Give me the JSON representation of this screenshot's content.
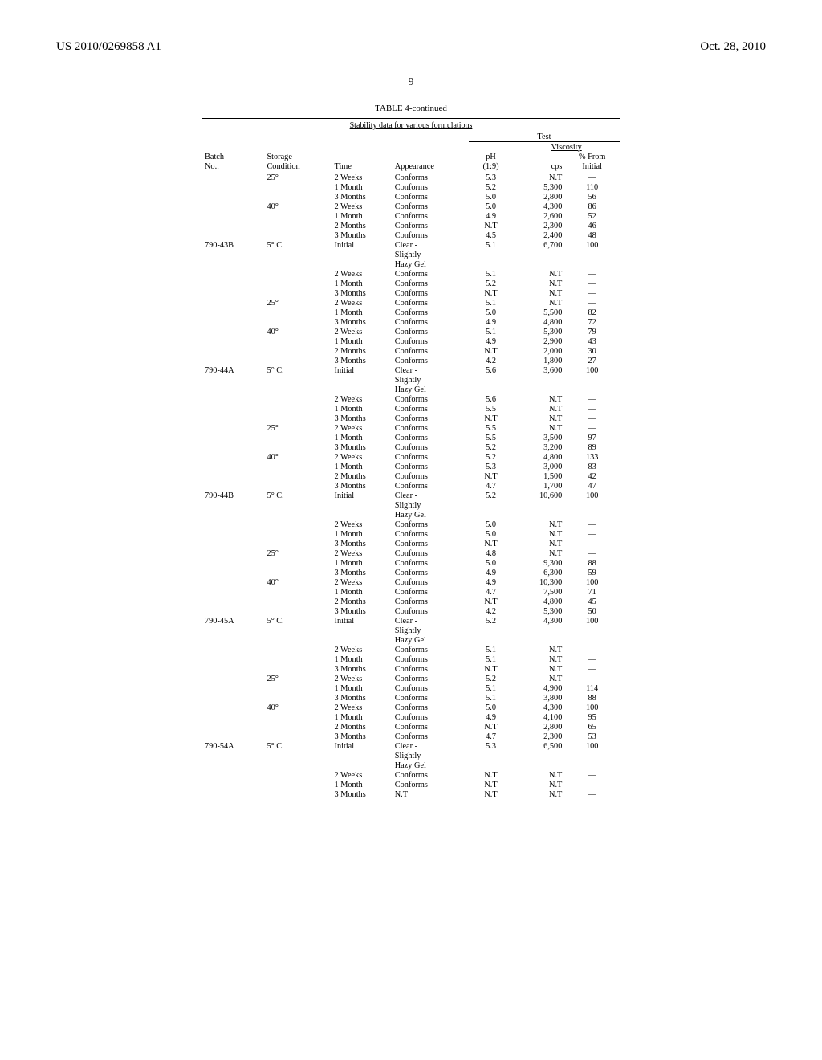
{
  "header": {
    "left": "US 2010/0269858 A1",
    "right": "Oct. 28, 2010"
  },
  "page_number": "9",
  "table": {
    "title": "TABLE 4-continued",
    "subtitle": "Stability data for various formulations",
    "test_label": "Test",
    "viscosity_label": "Viscosity",
    "columns": {
      "batch_l1": "Batch",
      "batch_l2": "No.:",
      "storage_l1": "Storage",
      "storage_l2": "Condition",
      "time": "Time",
      "appearance": "Appearance",
      "ph_l1": "pH",
      "ph_l2": "(1:9)",
      "cps": "cps",
      "pct_l1": "% From",
      "pct_l2": "Initial"
    },
    "rows": [
      {
        "batch": "",
        "storage": "25°",
        "time": "2 Weeks",
        "appear": "Conforms",
        "ph": "5.3",
        "cps": "N.T",
        "pct": "—"
      },
      {
        "batch": "",
        "storage": "",
        "time": "1 Month",
        "appear": "Conforms",
        "ph": "5.2",
        "cps": "5,300",
        "pct": "110"
      },
      {
        "batch": "",
        "storage": "",
        "time": "3 Months",
        "appear": "Conforms",
        "ph": "5.0",
        "cps": "2,800",
        "pct": "56"
      },
      {
        "batch": "",
        "storage": "40°",
        "time": "2 Weeks",
        "appear": "Conforms",
        "ph": "5.0",
        "cps": "4,300",
        "pct": "86"
      },
      {
        "batch": "",
        "storage": "",
        "time": "1 Month",
        "appear": "Conforms",
        "ph": "4.9",
        "cps": "2,600",
        "pct": "52"
      },
      {
        "batch": "",
        "storage": "",
        "time": "2 Months",
        "appear": "Conforms",
        "ph": "N.T",
        "cps": "2,300",
        "pct": "46"
      },
      {
        "batch": "",
        "storage": "",
        "time": "3 Months",
        "appear": "Conforms",
        "ph": "4.5",
        "cps": "2,400",
        "pct": "48"
      },
      {
        "batch": "790-43B",
        "storage": "5° C.",
        "time": "Initial",
        "appear": "Clear -",
        "ph": "5.1",
        "cps": "6,700",
        "pct": "100"
      },
      {
        "batch": "",
        "storage": "",
        "time": "",
        "appear": "Slightly",
        "ph": "",
        "cps": "",
        "pct": ""
      },
      {
        "batch": "",
        "storage": "",
        "time": "",
        "appear": "Hazy Gel",
        "ph": "",
        "cps": "",
        "pct": ""
      },
      {
        "batch": "",
        "storage": "",
        "time": "2 Weeks",
        "appear": "Conforms",
        "ph": "5.1",
        "cps": "N.T",
        "pct": "—"
      },
      {
        "batch": "",
        "storage": "",
        "time": "1 Month",
        "appear": "Conforms",
        "ph": "5.2",
        "cps": "N.T",
        "pct": "—"
      },
      {
        "batch": "",
        "storage": "",
        "time": "3 Months",
        "appear": "Conforms",
        "ph": "N.T",
        "cps": "N.T",
        "pct": "—"
      },
      {
        "batch": "",
        "storage": "25°",
        "time": "2 Weeks",
        "appear": "Conforms",
        "ph": "5.1",
        "cps": "N.T",
        "pct": "—"
      },
      {
        "batch": "",
        "storage": "",
        "time": "1 Month",
        "appear": "Conforms",
        "ph": "5.0",
        "cps": "5,500",
        "pct": "82"
      },
      {
        "batch": "",
        "storage": "",
        "time": "3 Months",
        "appear": "Conforms",
        "ph": "4.9",
        "cps": "4,800",
        "pct": "72"
      },
      {
        "batch": "",
        "storage": "40°",
        "time": "2 Weeks",
        "appear": "Conforms",
        "ph": "5.1",
        "cps": "5,300",
        "pct": "79"
      },
      {
        "batch": "",
        "storage": "",
        "time": "1 Month",
        "appear": "Conforms",
        "ph": "4.9",
        "cps": "2,900",
        "pct": "43"
      },
      {
        "batch": "",
        "storage": "",
        "time": "2 Months",
        "appear": "Conforms",
        "ph": "N.T",
        "cps": "2,000",
        "pct": "30"
      },
      {
        "batch": "",
        "storage": "",
        "time": "3 Months",
        "appear": "Conforms",
        "ph": "4.2",
        "cps": "1,800",
        "pct": "27"
      },
      {
        "batch": "790-44A",
        "storage": "5° C.",
        "time": "Initial",
        "appear": "Clear -",
        "ph": "5.6",
        "cps": "3,600",
        "pct": "100"
      },
      {
        "batch": "",
        "storage": "",
        "time": "",
        "appear": "Slightly",
        "ph": "",
        "cps": "",
        "pct": ""
      },
      {
        "batch": "",
        "storage": "",
        "time": "",
        "appear": "Hazy Gel",
        "ph": "",
        "cps": "",
        "pct": ""
      },
      {
        "batch": "",
        "storage": "",
        "time": "2 Weeks",
        "appear": "Conforms",
        "ph": "5.6",
        "cps": "N.T",
        "pct": "—"
      },
      {
        "batch": "",
        "storage": "",
        "time": "1 Month",
        "appear": "Conforms",
        "ph": "5.5",
        "cps": "N.T",
        "pct": "—"
      },
      {
        "batch": "",
        "storage": "",
        "time": "3 Months",
        "appear": "Conforms",
        "ph": "N.T",
        "cps": "N.T",
        "pct": "—"
      },
      {
        "batch": "",
        "storage": "25°",
        "time": "2 Weeks",
        "appear": "Conforms",
        "ph": "5.5",
        "cps": "N.T",
        "pct": "—"
      },
      {
        "batch": "",
        "storage": "",
        "time": "1 Month",
        "appear": "Conforms",
        "ph": "5.5",
        "cps": "3,500",
        "pct": "97"
      },
      {
        "batch": "",
        "storage": "",
        "time": "3 Months",
        "appear": "Conforms",
        "ph": "5.2",
        "cps": "3,200",
        "pct": "89"
      },
      {
        "batch": "",
        "storage": "40°",
        "time": "2 Weeks",
        "appear": "Conforms",
        "ph": "5.2",
        "cps": "4,800",
        "pct": "133"
      },
      {
        "batch": "",
        "storage": "",
        "time": "1 Month",
        "appear": "Conforms",
        "ph": "5.3",
        "cps": "3,000",
        "pct": "83"
      },
      {
        "batch": "",
        "storage": "",
        "time": "2 Months",
        "appear": "Conforms",
        "ph": "N.T",
        "cps": "1,500",
        "pct": "42"
      },
      {
        "batch": "",
        "storage": "",
        "time": "3 Months",
        "appear": "Conforms",
        "ph": "4.7",
        "cps": "1,700",
        "pct": "47"
      },
      {
        "batch": "790-44B",
        "storage": "5° C.",
        "time": "Initial",
        "appear": "Clear -",
        "ph": "5.2",
        "cps": "10,600",
        "pct": "100"
      },
      {
        "batch": "",
        "storage": "",
        "time": "",
        "appear": "Slightly",
        "ph": "",
        "cps": "",
        "pct": ""
      },
      {
        "batch": "",
        "storage": "",
        "time": "",
        "appear": "Hazy Gel",
        "ph": "",
        "cps": "",
        "pct": ""
      },
      {
        "batch": "",
        "storage": "",
        "time": "2 Weeks",
        "appear": "Conforms",
        "ph": "5.0",
        "cps": "N.T",
        "pct": "—"
      },
      {
        "batch": "",
        "storage": "",
        "time": "1 Month",
        "appear": "Conforms",
        "ph": "5.0",
        "cps": "N.T",
        "pct": "—"
      },
      {
        "batch": "",
        "storage": "",
        "time": "3 Months",
        "appear": "Conforms",
        "ph": "N.T",
        "cps": "N.T",
        "pct": "—"
      },
      {
        "batch": "",
        "storage": "25°",
        "time": "2 Weeks",
        "appear": "Conforms",
        "ph": "4.8",
        "cps": "N.T",
        "pct": "—"
      },
      {
        "batch": "",
        "storage": "",
        "time": "1 Month",
        "appear": "Conforms",
        "ph": "5.0",
        "cps": "9,300",
        "pct": "88"
      },
      {
        "batch": "",
        "storage": "",
        "time": "3 Months",
        "appear": "Conforms",
        "ph": "4.9",
        "cps": "6,300",
        "pct": "59"
      },
      {
        "batch": "",
        "storage": "40°",
        "time": "2 Weeks",
        "appear": "Conforms",
        "ph": "4.9",
        "cps": "10,300",
        "pct": "100"
      },
      {
        "batch": "",
        "storage": "",
        "time": "1 Month",
        "appear": "Conforms",
        "ph": "4.7",
        "cps": "7,500",
        "pct": "71"
      },
      {
        "batch": "",
        "storage": "",
        "time": "2 Months",
        "appear": "Conforms",
        "ph": "N.T",
        "cps": "4,800",
        "pct": "45"
      },
      {
        "batch": "",
        "storage": "",
        "time": "3 Months",
        "appear": "Conforms",
        "ph": "4.2",
        "cps": "5,300",
        "pct": "50"
      },
      {
        "batch": "790-45A",
        "storage": "5° C.",
        "time": "Initial",
        "appear": "Clear -",
        "ph": "5.2",
        "cps": "4,300",
        "pct": "100"
      },
      {
        "batch": "",
        "storage": "",
        "time": "",
        "appear": "Slightly",
        "ph": "",
        "cps": "",
        "pct": ""
      },
      {
        "batch": "",
        "storage": "",
        "time": "",
        "appear": "Hazy Gel",
        "ph": "",
        "cps": "",
        "pct": ""
      },
      {
        "batch": "",
        "storage": "",
        "time": "2 Weeks",
        "appear": "Conforms",
        "ph": "5.1",
        "cps": "N.T",
        "pct": "—"
      },
      {
        "batch": "",
        "storage": "",
        "time": "1 Month",
        "appear": "Conforms",
        "ph": "5.1",
        "cps": "N.T",
        "pct": "—"
      },
      {
        "batch": "",
        "storage": "",
        "time": "3 Months",
        "appear": "Conforms",
        "ph": "N.T",
        "cps": "N.T",
        "pct": "—"
      },
      {
        "batch": "",
        "storage": "25°",
        "time": "2 Weeks",
        "appear": "Conforms",
        "ph": "5.2",
        "cps": "N.T",
        "pct": "—"
      },
      {
        "batch": "",
        "storage": "",
        "time": "1 Month",
        "appear": "Conforms",
        "ph": "5.1",
        "cps": "4,900",
        "pct": "114"
      },
      {
        "batch": "",
        "storage": "",
        "time": "3 Months",
        "appear": "Conforms",
        "ph": "5.1",
        "cps": "3,800",
        "pct": "88"
      },
      {
        "batch": "",
        "storage": "40°",
        "time": "2 Weeks",
        "appear": "Conforms",
        "ph": "5.0",
        "cps": "4,300",
        "pct": "100"
      },
      {
        "batch": "",
        "storage": "",
        "time": "1 Month",
        "appear": "Conforms",
        "ph": "4.9",
        "cps": "4,100",
        "pct": "95"
      },
      {
        "batch": "",
        "storage": "",
        "time": "2 Months",
        "appear": "Conforms",
        "ph": "N.T",
        "cps": "2,800",
        "pct": "65"
      },
      {
        "batch": "",
        "storage": "",
        "time": "3 Months",
        "appear": "Conforms",
        "ph": "4.7",
        "cps": "2,300",
        "pct": "53"
      },
      {
        "batch": "790-54A",
        "storage": "5° C.",
        "time": "Initial",
        "appear": "Clear -",
        "ph": "5.3",
        "cps": "6,500",
        "pct": "100"
      },
      {
        "batch": "",
        "storage": "",
        "time": "",
        "appear": "Slightly",
        "ph": "",
        "cps": "",
        "pct": ""
      },
      {
        "batch": "",
        "storage": "",
        "time": "",
        "appear": "Hazy Gel",
        "ph": "",
        "cps": "",
        "pct": ""
      },
      {
        "batch": "",
        "storage": "",
        "time": "2 Weeks",
        "appear": "Conforms",
        "ph": "N.T",
        "cps": "N.T",
        "pct": "—"
      },
      {
        "batch": "",
        "storage": "",
        "time": "1 Month",
        "appear": "Conforms",
        "ph": "N.T",
        "cps": "N.T",
        "pct": "—"
      },
      {
        "batch": "",
        "storage": "",
        "time": "3 Months",
        "appear": "N.T",
        "ph": "N.T",
        "cps": "N.T",
        "pct": "—"
      }
    ]
  }
}
